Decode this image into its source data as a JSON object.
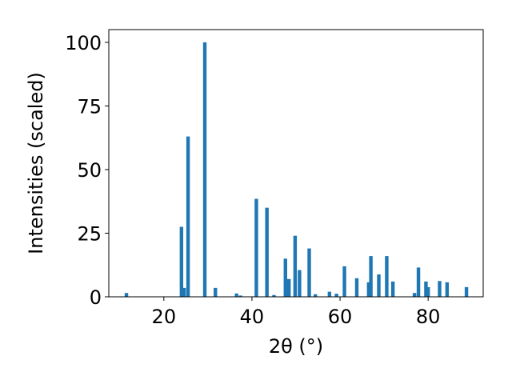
{
  "chart_data": {
    "type": "bar",
    "xlabel": "2θ (°)",
    "ylabel": "Intensities (scaled)",
    "xlim": [
      7.5,
      92.5
    ],
    "ylim": [
      0,
      105
    ],
    "x_ticks": [
      20,
      40,
      60,
      80
    ],
    "y_ticks": [
      0,
      25,
      50,
      75,
      100
    ],
    "bar_color": "#1f77b4",
    "bar_width": 0.8,
    "grid": false,
    "legend": "none",
    "x": [
      11.5,
      24.0,
      24.6,
      25.5,
      29.3,
      31.7,
      36.5,
      37.4,
      41.0,
      43.4,
      45.0,
      47.6,
      48.4,
      49.8,
      50.8,
      53.0,
      54.4,
      57.6,
      59.2,
      61.0,
      63.8,
      66.5,
      67.0,
      68.8,
      70.6,
      72.0,
      76.9,
      77.8,
      79.5,
      80.0,
      82.6,
      84.3,
      88.7
    ],
    "values": [
      1.5,
      27.5,
      3.5,
      63,
      100,
      3.5,
      1.3,
      0.5,
      38.5,
      35,
      0.7,
      15,
      7,
      24,
      10.5,
      19,
      1,
      2,
      1.2,
      12,
      7.3,
      5.7,
      16,
      8.8,
      16,
      6,
      1.5,
      11.5,
      6,
      3.8,
      6.2,
      5.7,
      3.8
    ]
  }
}
